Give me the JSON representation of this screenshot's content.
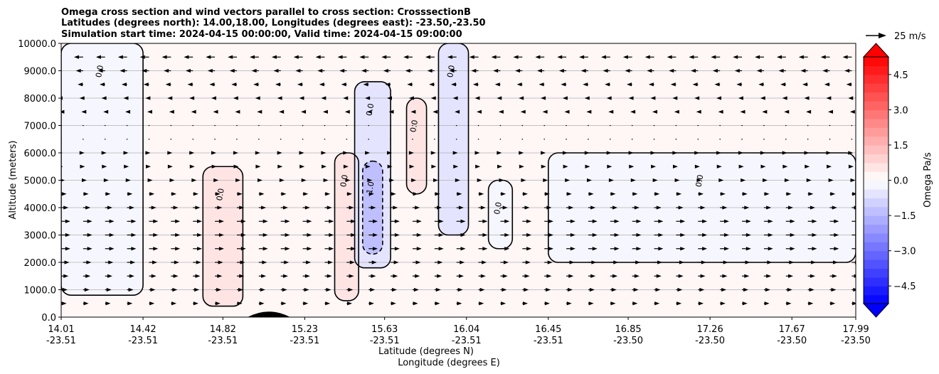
{
  "chart_data": {
    "type": "contour",
    "title_lines": [
      "Omega cross section and wind vectors parallel to cross section: CrosssectionB",
      "Latitudes (degrees north): 14.00,18.00, Longitudes (degrees east): -23.50,-23.50",
      "Simulation start time: 2024-04-15 00:00:00, Valid time: 2024-04-15 09:00:00"
    ],
    "xlabel_lines": [
      "Latitude (degrees N)",
      "Longitude (degrees E)"
    ],
    "ylabel": "Altitude (meters)",
    "ylim": [
      0,
      10000
    ],
    "y_ticks": [
      "0.0",
      "1000.0",
      "2000.0",
      "3000.0",
      "4000.0",
      "5000.0",
      "6000.0",
      "7000.0",
      "8000.0",
      "9000.0",
      "10000.0"
    ],
    "x_ticks": [
      {
        "lat": "14.01",
        "lon": "-23.51"
      },
      {
        "lat": "14.42",
        "lon": "-23.51"
      },
      {
        "lat": "14.82",
        "lon": "-23.51"
      },
      {
        "lat": "15.23",
        "lon": "-23.51"
      },
      {
        "lat": "15.63",
        "lon": "-23.51"
      },
      {
        "lat": "16.04",
        "lon": "-23.51"
      },
      {
        "lat": "16.45",
        "lon": "-23.51"
      },
      {
        "lat": "16.85",
        "lon": "-23.50"
      },
      {
        "lat": "17.26",
        "lon": "-23.50"
      },
      {
        "lat": "17.67",
        "lon": "-23.50"
      },
      {
        "lat": "17.99",
        "lon": "-23.50"
      }
    ],
    "grid": "horizontal",
    "colorbar": {
      "label": "Omega Pa/s",
      "range": [
        -5.25,
        5.25
      ],
      "step": 0.375,
      "tick_values": [
        -4.5,
        -3.0,
        -1.5,
        0.0,
        1.5,
        3.0,
        4.5
      ],
      "tick_labels": [
        "−4.5",
        "−3.0",
        "−1.5",
        "0.0",
        "1.5",
        "3.0",
        "4.5"
      ],
      "colormap": "bwr",
      "extend": "both",
      "negative_color": "#0000ff",
      "positive_color": "#ff0000"
    },
    "vector_key": {
      "label": "25 m/s",
      "speed": 25
    },
    "contour_line_labels": [
      "0.0",
      "-1.0"
    ],
    "omega_shaded_regions": [
      {
        "sign": "positive",
        "value": 0.3,
        "lat_range": [
          14.01,
          17.99
        ],
        "alt_range": [
          0,
          10000
        ],
        "note_area": "background upper and lower layers"
      },
      {
        "sign": "negative",
        "value": -0.3,
        "lat_range": [
          16.45,
          17.99
        ],
        "alt_range": [
          2000,
          6000
        ]
      },
      {
        "sign": "negative",
        "value": -0.3,
        "lat_range": [
          14.01,
          14.42
        ],
        "alt_range": [
          800,
          10000
        ]
      },
      {
        "sign": "positive",
        "value": 0.6,
        "lat_range": [
          14.72,
          14.92
        ],
        "alt_range": [
          400,
          5500
        ]
      },
      {
        "sign": "positive",
        "value": 0.6,
        "lat_range": [
          15.38,
          15.5
        ],
        "alt_range": [
          600,
          6000
        ]
      },
      {
        "sign": "negative",
        "value": -0.7,
        "lat_range": [
          15.48,
          15.66
        ],
        "alt_range": [
          1800,
          8600
        ]
      },
      {
        "sign": "negative",
        "value": -1.4,
        "lat_range": [
          15.52,
          15.62
        ],
        "alt_range": [
          2300,
          5700
        ]
      },
      {
        "sign": "negative",
        "value": -0.5,
        "lat_range": [
          15.9,
          16.05
        ],
        "alt_range": [
          3000,
          10000
        ]
      },
      {
        "sign": "positive",
        "value": 0.5,
        "lat_range": [
          15.74,
          15.84
        ],
        "alt_range": [
          4500,
          8000
        ]
      },
      {
        "sign": "negative",
        "value": -0.3,
        "lat_range": [
          16.15,
          16.27
        ],
        "alt_range": [
          2500,
          5000
        ]
      }
    ],
    "winds": {
      "rows_altitude": [
        0,
        500,
        1000,
        1500,
        2000,
        2500,
        3000,
        3500,
        4000,
        4500,
        5000,
        5500,
        6000,
        6500,
        7000,
        7500,
        8000,
        8500,
        9000,
        9500
      ],
      "cols_latitude": [
        14.01,
        14.12,
        14.23,
        14.34,
        14.45,
        14.56,
        14.67,
        14.78,
        14.89,
        15.0,
        15.11,
        15.22,
        15.33,
        15.44,
        15.55,
        15.66,
        15.77,
        15.88,
        15.99,
        16.1,
        16.21,
        16.32,
        16.43,
        16.54,
        16.65,
        16.76,
        16.87,
        16.98,
        17.09,
        17.2,
        17.31,
        17.42,
        17.53,
        17.64,
        17.75,
        17.86,
        17.97
      ],
      "u_profile_ms": [
        {
          "alt": 500,
          "u": 3
        },
        {
          "alt": 1500,
          "u": 4
        },
        {
          "alt": 2500,
          "u": 5
        },
        {
          "alt": 3500,
          "u": 5
        },
        {
          "alt": 4500,
          "u": 3
        },
        {
          "alt": 5500,
          "u": 1
        },
        {
          "alt": 6500,
          "u": 0.5
        },
        {
          "alt": 7500,
          "u": -1
        },
        {
          "alt": 8500,
          "u": -3
        },
        {
          "alt": 9500,
          "u": -5
        }
      ]
    },
    "terrain": {
      "lat_peak": 15.05,
      "alt_peak": 250
    }
  }
}
